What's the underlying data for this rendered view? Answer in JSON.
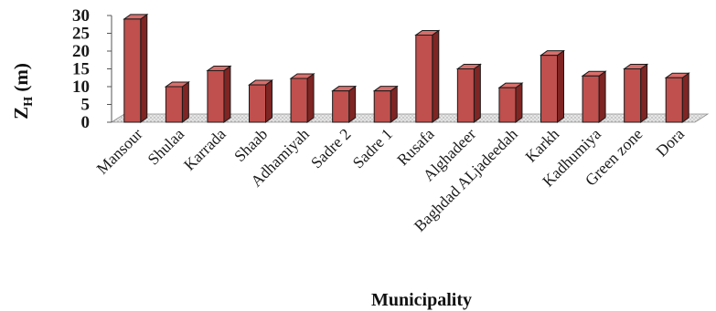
{
  "chart_data": {
    "type": "bar",
    "title": "",
    "xlabel": "Municipality",
    "ylabel": {
      "main": "Z",
      "sub": "H",
      "unit": " (m)"
    },
    "ylim": [
      0,
      30
    ],
    "yticks": [
      0,
      5,
      10,
      15,
      20,
      25,
      30
    ],
    "style": "3d-column",
    "bar_color": "#C0504D",
    "floor_color": "#d9d9d9",
    "categories": [
      "Mansour",
      "Shulaa",
      "Karrada",
      "Shaab",
      "Adhamiyah",
      "Sadre 2",
      "Sadre 1",
      "Rusafa",
      "Alghadeer",
      "Baghdad ALjadeedah",
      "Karkh",
      "Kadhumiya",
      "Green zone",
      "Dora"
    ],
    "values": [
      29,
      10,
      14.5,
      10.5,
      12.3,
      8.8,
      8.8,
      24.5,
      15,
      9.7,
      18.8,
      13,
      15,
      12.5
    ]
  }
}
